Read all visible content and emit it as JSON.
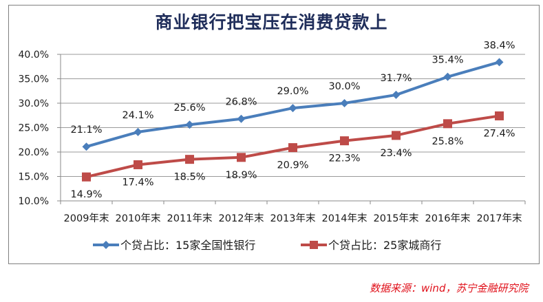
{
  "chart": {
    "title": "商业银行把宝压在消费贷款上",
    "source": "数据来源：wind，苏宁金融研究院",
    "legend": [
      {
        "label": "个贷占比：15家全国性银行",
        "color": "#4a7ebb",
        "marker": "diamond"
      },
      {
        "label": "个贷占比：25家城商行",
        "color": "#be4b48",
        "marker": "square"
      }
    ],
    "y_ticks": [
      "40.0%",
      "35.0%",
      "30.0%",
      "25.0%",
      "20.0%",
      "15.0%",
      "10.0%"
    ],
    "x_ticks": [
      "2009年末",
      "2010年末",
      "2011年末",
      "2012年末",
      "2013年末",
      "2014年末",
      "2015年末",
      "2016年末",
      "2017年末"
    ]
  },
  "chart_data": {
    "type": "line",
    "title": "商业银行把宝压在消费贷款上",
    "categories": [
      "2009年末",
      "2010年末",
      "2011年末",
      "2012年末",
      "2013年末",
      "2014年末",
      "2015年末",
      "2016年末",
      "2017年末"
    ],
    "series": [
      {
        "name": "个贷占比：15家全国性银行",
        "color": "#4a7ebb",
        "marker": "diamond",
        "values": [
          21.1,
          24.1,
          25.6,
          26.8,
          29.0,
          30.0,
          31.7,
          35.4,
          38.4
        ],
        "labels": [
          "21.1%",
          "24.1%",
          "25.6%",
          "26.8%",
          "29.0%",
          "30.0%",
          "31.7%",
          "35.4%",
          "38.4%"
        ]
      },
      {
        "name": "个贷占比：25家城商行",
        "color": "#be4b48",
        "marker": "square",
        "values": [
          14.9,
          17.4,
          18.5,
          18.9,
          20.9,
          22.3,
          23.4,
          25.8,
          27.4
        ],
        "labels": [
          "14.9%",
          "17.4%",
          "18.5%",
          "18.9%",
          "20.9%",
          "22.3%",
          "23.4%",
          "25.8%",
          "27.4%"
        ]
      }
    ],
    "xlabel": "",
    "ylabel": "",
    "ylim": [
      10,
      40
    ],
    "y_tick_step": 5,
    "y_format": "0.0%",
    "grid": {
      "horizontal": true,
      "vertical": false
    },
    "legend_position": "bottom",
    "source_note": "数据来源：wind，苏宁金融研究院"
  }
}
